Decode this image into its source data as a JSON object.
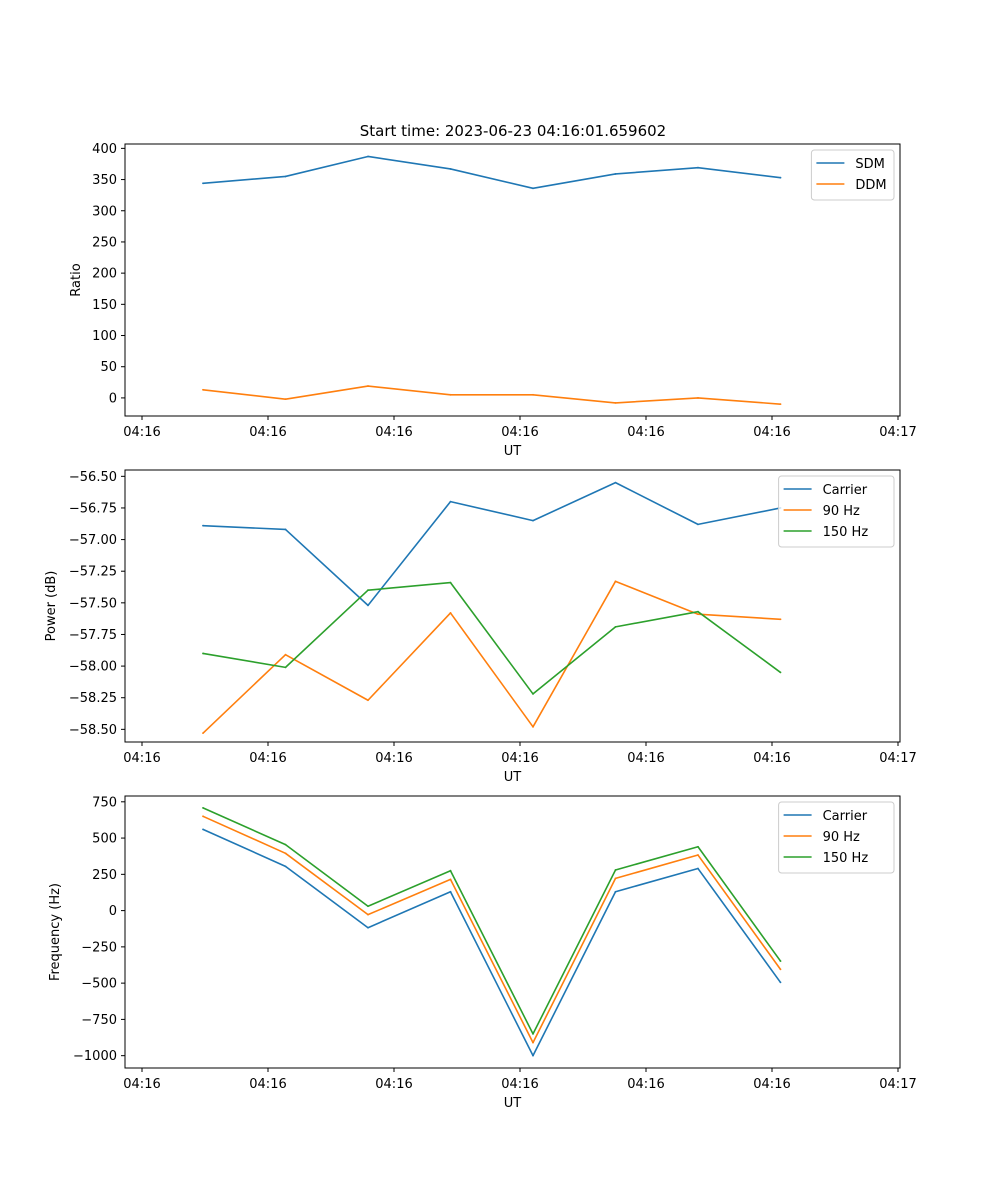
{
  "figure": {
    "title": "Start time: 2023-06-23 04:16:01.659602"
  },
  "chart_data": [
    {
      "type": "line",
      "title": "Start time: 2023-06-23 04:16:01.659602",
      "xlabel": "UT",
      "ylabel": "Ratio",
      "x_tick_labels": [
        "04:16",
        "04:16",
        "04:16",
        "04:16",
        "04:16",
        "04:16",
        "04:17"
      ],
      "y_ticks": [
        0,
        50,
        100,
        150,
        200,
        250,
        300,
        350,
        400
      ],
      "ylim": [
        -29,
        407
      ],
      "grid": false,
      "legend": "top-right",
      "series": [
        {
          "name": "SDM",
          "color": "#1f77b4",
          "values": [
            344,
            355,
            387,
            367,
            336,
            359,
            369,
            353
          ]
        },
        {
          "name": "DDM",
          "color": "#ff7f0e",
          "values": [
            13,
            -2,
            19,
            5,
            5,
            -8,
            0,
            -10
          ]
        }
      ]
    },
    {
      "type": "line",
      "title": "",
      "xlabel": "UT",
      "ylabel": "Power (dB)",
      "x_tick_labels": [
        "04:16",
        "04:16",
        "04:16",
        "04:16",
        "04:16",
        "04:16",
        "04:17"
      ],
      "y_ticks": [
        -58.5,
        -58.25,
        -58.0,
        -57.75,
        -57.5,
        -57.25,
        -57.0,
        -56.75,
        -56.5
      ],
      "y_tick_labels": [
        "−58.50",
        "−58.25",
        "−58.00",
        "−57.75",
        "−57.50",
        "−57.25",
        "−57.00",
        "−56.75",
        "−56.50"
      ],
      "ylim": [
        -58.6,
        -56.45
      ],
      "grid": false,
      "legend": "top-right",
      "series": [
        {
          "name": "Carrier",
          "color": "#1f77b4",
          "values": [
            -56.89,
            -56.92,
            -57.52,
            -56.7,
            -56.85,
            -56.55,
            -56.88,
            -56.75
          ]
        },
        {
          "name": "90 Hz",
          "color": "#ff7f0e",
          "values": [
            -58.53,
            -57.91,
            -58.27,
            -57.58,
            -58.48,
            -57.33,
            -57.59,
            -57.63
          ]
        },
        {
          "name": "150 Hz",
          "color": "#2ca02c",
          "values": [
            -57.9,
            -58.01,
            -57.4,
            -57.34,
            -58.22,
            -57.69,
            -57.57,
            -58.05
          ]
        }
      ]
    },
    {
      "type": "line",
      "title": "",
      "xlabel": "UT",
      "ylabel": "Frequency (Hz)",
      "x_tick_labels": [
        "04:16",
        "04:16",
        "04:16",
        "04:16",
        "04:16",
        "04:16",
        "04:17"
      ],
      "y_ticks": [
        -1000,
        -750,
        -500,
        -250,
        0,
        250,
        500,
        750
      ],
      "y_tick_labels": [
        "−1000",
        "−750",
        "−500",
        "−250",
        "0",
        "250",
        "500",
        "750"
      ],
      "ylim": [
        -1085,
        790
      ],
      "grid": false,
      "legend": "top-right",
      "series": [
        {
          "name": "Carrier",
          "color": "#1f77b4",
          "values": [
            560,
            305,
            -118,
            130,
            -1000,
            130,
            290,
            -495
          ]
        },
        {
          "name": "90 Hz",
          "color": "#ff7f0e",
          "values": [
            650,
            395,
            -28,
            215,
            -910,
            222,
            383,
            -405
          ]
        },
        {
          "name": "150 Hz",
          "color": "#2ca02c",
          "values": [
            708,
            455,
            30,
            275,
            -850,
            280,
            440,
            -348
          ]
        }
      ]
    }
  ]
}
